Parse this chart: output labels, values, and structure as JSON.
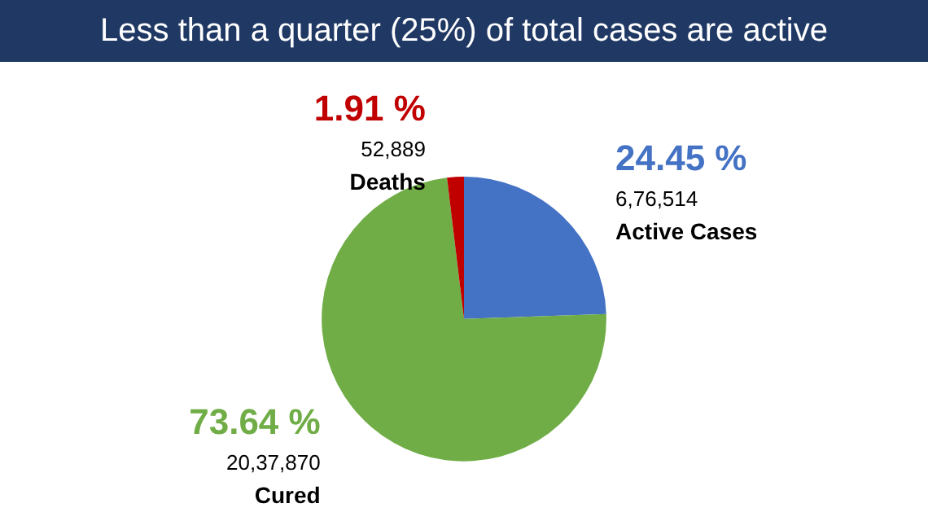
{
  "chart_data": {
    "type": "pie",
    "title": "Less than a quarter (25%) of total cases are active",
    "categories": [
      "Active Cases",
      "Cured",
      "Deaths"
    ],
    "values": [
      676514,
      2037870,
      52889
    ],
    "value_labels": [
      "6,76,514",
      "20,37,870",
      "52,889"
    ],
    "annotations": [
      "24.45 %",
      "73.64 %",
      "1.91 %"
    ],
    "colors": [
      "#4472c4",
      "#70ad47",
      "#c00000"
    ]
  }
}
